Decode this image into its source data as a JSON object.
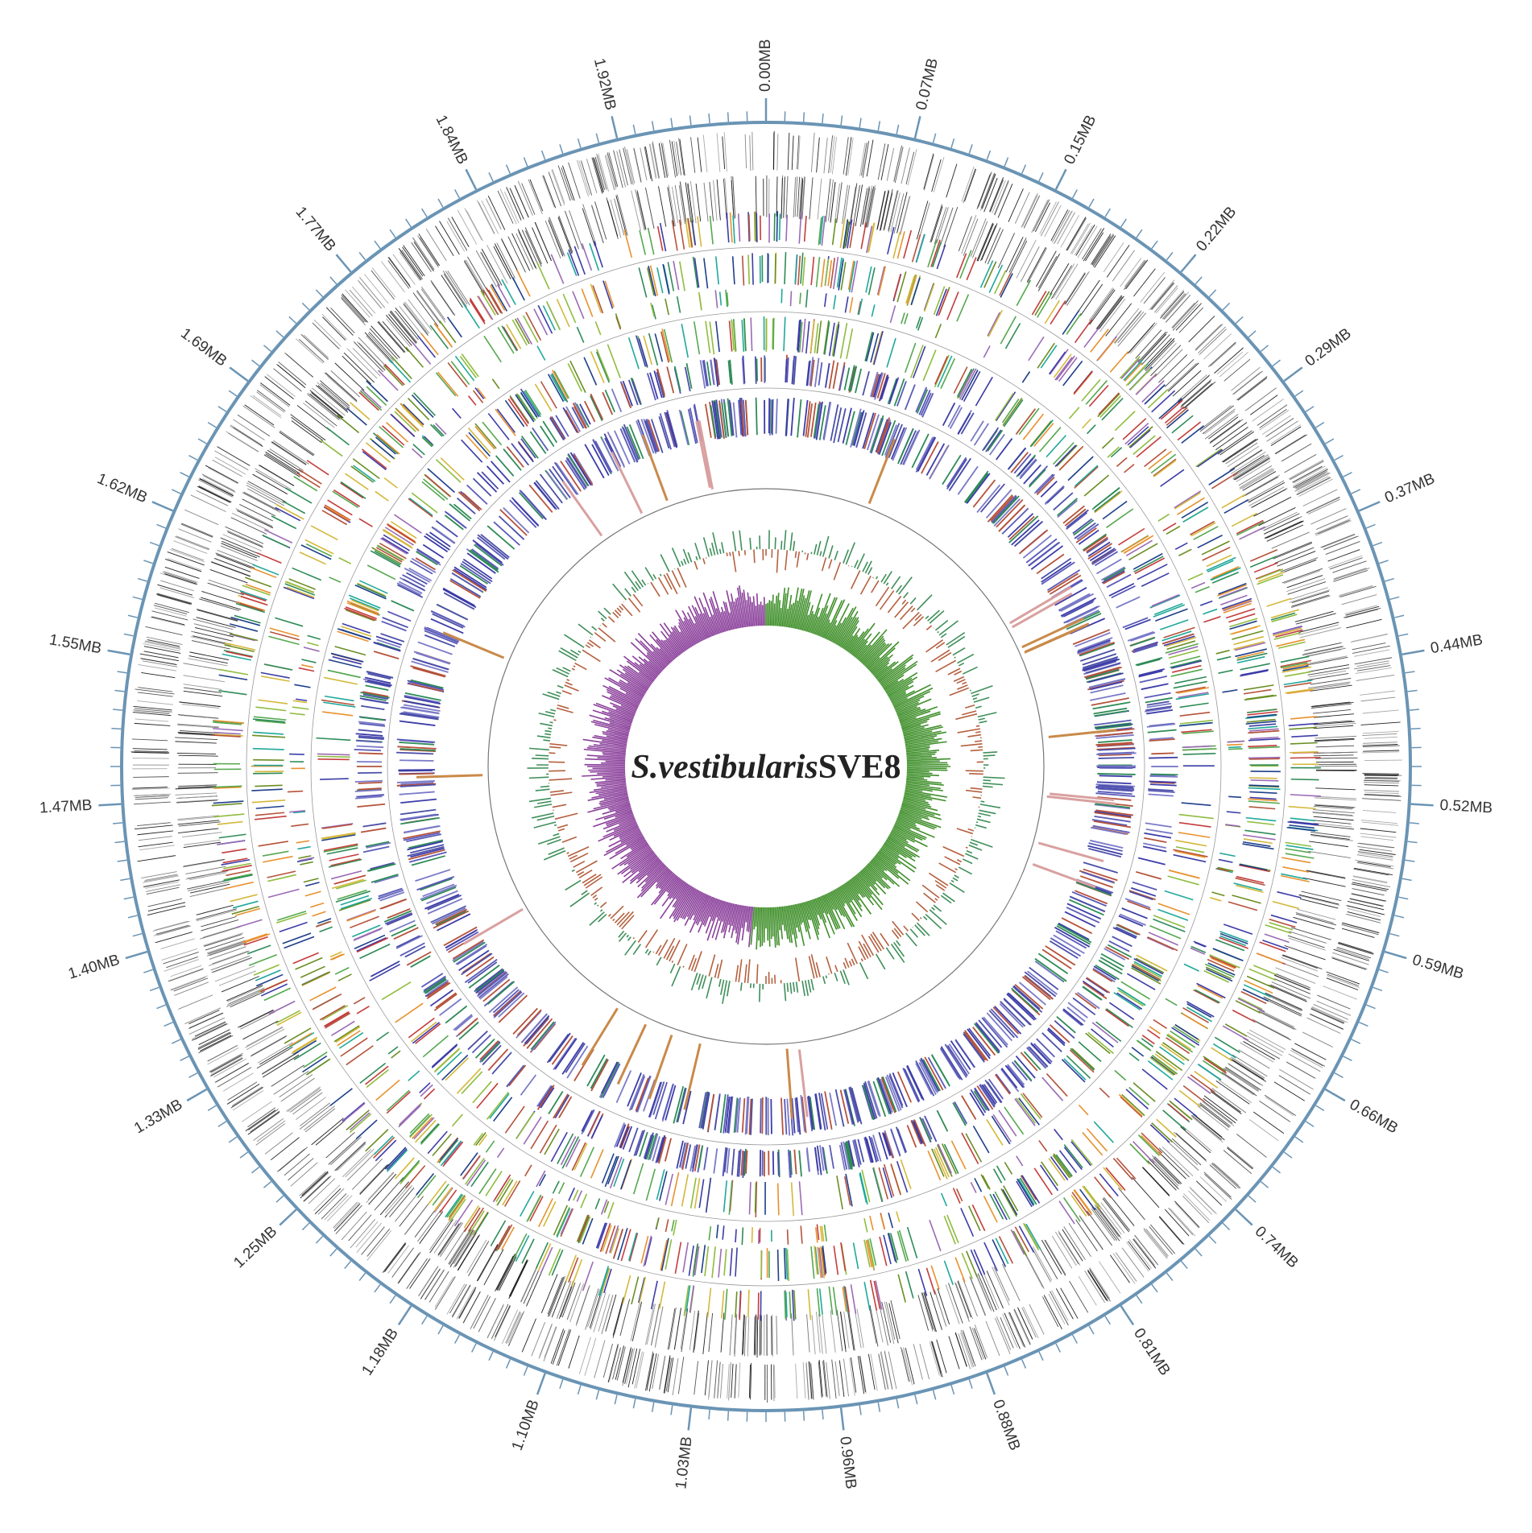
{
  "title": {
    "species": "S.vestibularis",
    "strain": "SVE8"
  },
  "scale_labels": [
    "0.00MB",
    "0.07MB",
    "0.15MB",
    "0.22MB",
    "0.29MB",
    "0.37MB",
    "0.44MB",
    "0.52MB",
    "0.59MB",
    "0.66MB",
    "0.74MB",
    "0.81MB",
    "0.88MB",
    "0.96MB",
    "1.03MB",
    "1.10MB",
    "1.18MB",
    "1.25MB",
    "1.33MB",
    "1.40MB",
    "1.47MB",
    "1.55MB",
    "1.62MB",
    "1.69MB",
    "1.77MB",
    "1.84MB",
    "1.92MB"
  ]
}
